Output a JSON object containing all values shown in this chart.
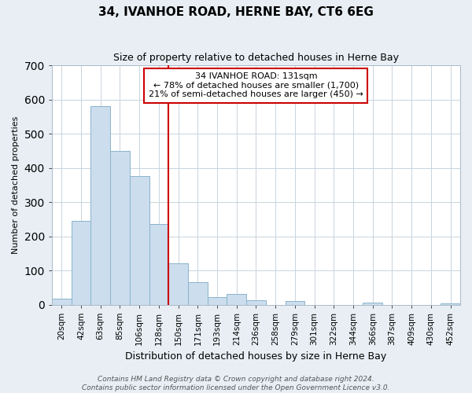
{
  "title": "34, IVANHOE ROAD, HERNE BAY, CT6 6EG",
  "subtitle": "Size of property relative to detached houses in Herne Bay",
  "xlabel": "Distribution of detached houses by size in Herne Bay",
  "ylabel": "Number of detached properties",
  "bar_labels": [
    "20sqm",
    "42sqm",
    "63sqm",
    "85sqm",
    "106sqm",
    "128sqm",
    "150sqm",
    "171sqm",
    "193sqm",
    "214sqm",
    "236sqm",
    "258sqm",
    "279sqm",
    "301sqm",
    "322sqm",
    "344sqm",
    "366sqm",
    "387sqm",
    "409sqm",
    "430sqm",
    "452sqm"
  ],
  "bar_values": [
    18,
    245,
    580,
    450,
    375,
    235,
    120,
    65,
    22,
    30,
    12,
    0,
    10,
    0,
    0,
    0,
    5,
    0,
    0,
    0,
    3
  ],
  "bar_color": "#ccdded",
  "bar_edge_color": "#8ab4cc",
  "vline_index": 6,
  "vline_color": "#cc0000",
  "ylim": [
    0,
    700
  ],
  "yticks": [
    0,
    100,
    200,
    300,
    400,
    500,
    600,
    700
  ],
  "annotation_title": "34 IVANHOE ROAD: 131sqm",
  "annotation_line1": "← 78% of detached houses are smaller (1,700)",
  "annotation_line2": "21% of semi-detached houses are larger (450) →",
  "annotation_box_color": "white",
  "annotation_box_edge": "#cc0000",
  "footer_line1": "Contains HM Land Registry data © Crown copyright and database right 2024.",
  "footer_line2": "Contains public sector information licensed under the Open Government Licence v3.0.",
  "background_color": "#e8eef4",
  "plot_bg_color": "white",
  "grid_color": "#c8d4de",
  "title_fontsize": 11,
  "subtitle_fontsize": 9,
  "ylabel_fontsize": 8,
  "xlabel_fontsize": 9,
  "tick_fontsize": 7.5,
  "footer_fontsize": 6.5
}
